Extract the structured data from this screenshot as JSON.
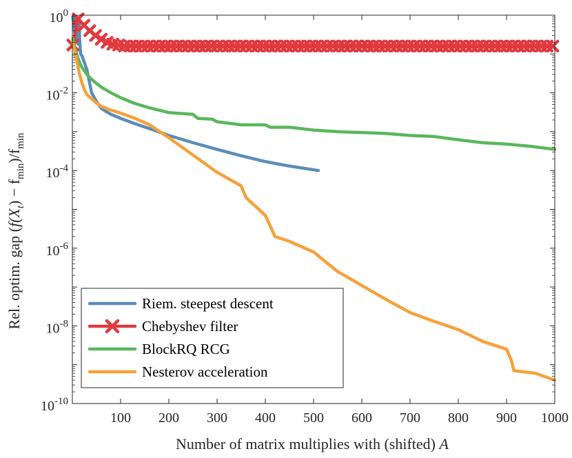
{
  "chart_data": {
    "type": "line",
    "yscale": "log",
    "xlabel_prefix": "Number of matrix multiplies with (shifted)",
    "xlabel_var": "A",
    "ylabel_main": "Rel. optim. gap (",
    "ylabel_expr": "f(X",
    "ylabel_sub_t": "t",
    "ylabel_mid": ") − f",
    "ylabel_min1": "min",
    "ylabel_close": ")/f",
    "ylabel_min2": "min",
    "xlim": [
      0,
      1000
    ],
    "ylim_exp": [
      -10,
      0
    ],
    "x_ticks": [
      100,
      200,
      300,
      400,
      500,
      600,
      700,
      800,
      900,
      1000
    ],
    "x_tick_labels": [
      "100",
      "200",
      "300",
      "400",
      "500",
      "600",
      "700",
      "800",
      "900",
      "1000"
    ],
    "y_ticks_exp": [
      0,
      -2,
      -4,
      -6,
      -8,
      -10
    ],
    "y_tick_labels": [
      {
        "base": "10",
        "exp": "0"
      },
      {
        "base": "10",
        "exp": "-2"
      },
      {
        "base": "10",
        "exp": "-4"
      },
      {
        "base": "10",
        "exp": "-6"
      },
      {
        "base": "10",
        "exp": "-8"
      },
      {
        "base": "10",
        "exp": "-10"
      }
    ],
    "legend_position": "bottom-left",
    "series": [
      {
        "name": "Riem. steepest descent",
        "color": "#5b8db8",
        "marker": "none",
        "x": [
          1,
          3,
          5,
          7,
          9,
          10,
          12,
          13,
          14,
          15,
          17,
          20,
          23,
          26,
          30,
          35,
          40,
          50,
          60,
          70,
          80,
          100,
          130,
          160,
          200,
          250,
          300,
          350,
          400,
          450,
          510
        ],
        "y": [
          0.9,
          0.6,
          0.35,
          0.22,
          0.9,
          0.5,
          0.18,
          0.4,
          0.8,
          0.25,
          0.1,
          0.09,
          0.07,
          0.055,
          0.04,
          0.02,
          0.01,
          0.006,
          0.004,
          0.0033,
          0.0028,
          0.0022,
          0.0016,
          0.0012,
          0.0008,
          0.00052,
          0.00035,
          0.00024,
          0.00017,
          0.00013,
          0.0001
        ]
      },
      {
        "name": "Chebyshev filter",
        "color": "#e0393e",
        "marker": "x",
        "x": [
          1,
          12,
          24,
          36,
          48,
          60,
          72,
          84,
          96,
          108,
          120,
          132,
          144,
          156,
          168,
          180,
          192,
          204,
          216,
          228,
          240,
          252,
          264,
          276,
          288,
          300,
          312,
          324,
          336,
          348,
          360,
          372,
          384,
          396,
          408,
          420,
          432,
          444,
          456,
          468,
          480,
          492,
          504,
          516,
          528,
          540,
          552,
          564,
          576,
          588,
          600,
          612,
          624,
          636,
          648,
          660,
          672,
          684,
          696,
          708,
          720,
          732,
          744,
          756,
          768,
          780,
          792,
          804,
          816,
          828,
          840,
          852,
          864,
          876,
          888,
          900,
          912,
          924,
          936,
          948,
          960,
          972,
          984,
          996
        ],
        "y": [
          0.17,
          0.8,
          0.55,
          0.4,
          0.3,
          0.24,
          0.2,
          0.18,
          0.17,
          0.16,
          0.16,
          0.16,
          0.16,
          0.16,
          0.16,
          0.16,
          0.16,
          0.16,
          0.16,
          0.16,
          0.16,
          0.16,
          0.16,
          0.16,
          0.16,
          0.16,
          0.16,
          0.16,
          0.16,
          0.16,
          0.16,
          0.16,
          0.16,
          0.16,
          0.16,
          0.16,
          0.16,
          0.16,
          0.16,
          0.16,
          0.16,
          0.16,
          0.16,
          0.16,
          0.16,
          0.16,
          0.16,
          0.16,
          0.16,
          0.16,
          0.16,
          0.16,
          0.16,
          0.16,
          0.16,
          0.16,
          0.16,
          0.16,
          0.16,
          0.16,
          0.16,
          0.16,
          0.16,
          0.16,
          0.16,
          0.16,
          0.16,
          0.16,
          0.16,
          0.16,
          0.16,
          0.16,
          0.16,
          0.16,
          0.16,
          0.16,
          0.16,
          0.16,
          0.16,
          0.16,
          0.16,
          0.16,
          0.16,
          0.16
        ]
      },
      {
        "name": "BlockRQ RCG",
        "color": "#5ab75a",
        "marker": "none",
        "x": [
          1,
          5,
          10,
          15,
          20,
          30,
          40,
          60,
          80,
          100,
          130,
          160,
          200,
          250,
          260,
          290,
          300,
          350,
          400,
          410,
          450,
          500,
          550,
          600,
          650,
          700,
          750,
          800,
          850,
          900,
          950,
          1000
        ],
        "y": [
          0.25,
          0.15,
          0.09,
          0.06,
          0.045,
          0.03,
          0.022,
          0.014,
          0.01,
          0.0075,
          0.0053,
          0.0041,
          0.0031,
          0.0028,
          0.0022,
          0.0021,
          0.0018,
          0.0015,
          0.0015,
          0.0013,
          0.0013,
          0.0011,
          0.001,
          0.00095,
          0.0009,
          0.0008,
          0.00075,
          0.00062,
          0.00052,
          0.00048,
          0.00042,
          0.00035
        ]
      },
      {
        "name": "Nesterov acceleration",
        "color": "#f6a13a",
        "marker": "none",
        "x": [
          1,
          5,
          10,
          15,
          20,
          25,
          30,
          40,
          50,
          60,
          70,
          80,
          100,
          130,
          160,
          200,
          250,
          300,
          350,
          360,
          400,
          420,
          450,
          500,
          550,
          600,
          650,
          700,
          750,
          800,
          850,
          900,
          910,
          915,
          960,
          1000
        ],
        "y": [
          0.2,
          0.12,
          0.06,
          0.03,
          0.018,
          0.012,
          0.009,
          0.007,
          0.0055,
          0.0045,
          0.004,
          0.0036,
          0.003,
          0.0022,
          0.0015,
          0.0007,
          0.00025,
          9e-05,
          4e-05,
          2e-05,
          7e-06,
          2e-06,
          1.5e-06,
          8e-07,
          2.5e-07,
          1.1e-07,
          4.8e-08,
          2.2e-08,
          1.3e-08,
          8e-09,
          4e-09,
          2.5e-09,
          1.3e-09,
          7e-10,
          6e-10,
          4e-10
        ]
      }
    ]
  }
}
